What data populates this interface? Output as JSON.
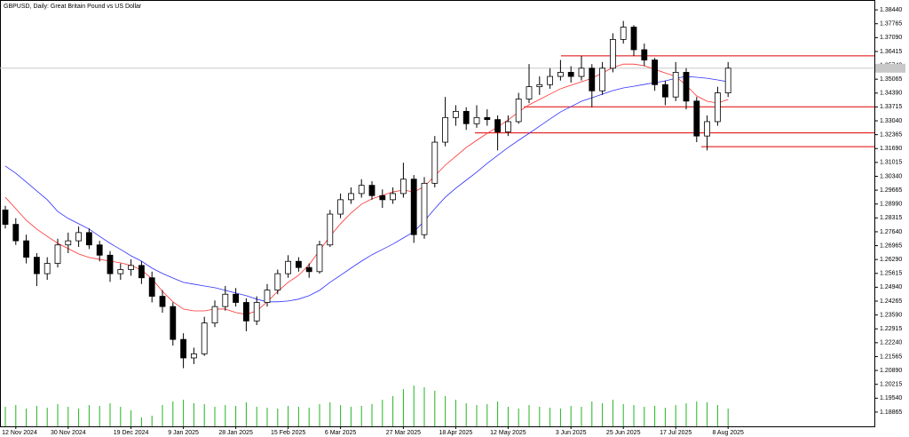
{
  "chart_data": {
    "type": "candlestick",
    "title": "GBPUSD, Daily:  Great Britain Pound vs US Dollar",
    "categories": [
      null,
      "12 Nov 2024",
      null,
      null,
      null,
      null,
      "30 Nov 2024",
      null,
      null,
      null,
      null,
      null,
      "19 Dec 2024",
      null,
      null,
      null,
      null,
      "9 Jan 2025",
      null,
      null,
      null,
      null,
      "28 Jan 2025",
      null,
      null,
      null,
      null,
      "15 Feb 2025",
      null,
      null,
      null,
      null,
      "6 Mar 2025",
      null,
      null,
      null,
      null,
      null,
      "27 Mar 2025",
      null,
      null,
      null,
      null,
      "18 Apr 2025",
      null,
      null,
      null,
      null,
      "12 May 2025",
      null,
      null,
      null,
      null,
      null,
      "3 Jun 2025",
      null,
      null,
      null,
      null,
      "25 Jun 2025",
      null,
      null,
      null,
      null,
      "17 Jul 2025",
      null,
      null,
      null,
      null,
      "8 Aug 2025"
    ],
    "open": [
      1.287,
      1.28,
      1.272,
      1.264,
      1.256,
      1.261,
      1.27,
      1.272,
      1.276,
      1.27,
      1.265,
      1.256,
      1.258,
      1.26,
      1.254,
      1.245,
      1.24,
      1.224,
      1.215,
      1.217,
      1.232,
      1.24,
      1.246,
      1.242,
      1.233,
      1.242,
      1.248,
      1.256,
      1.262,
      1.259,
      1.257,
      1.27,
      1.285,
      1.292,
      1.295,
      1.299,
      1.294,
      1.292,
      1.295,
      1.302,
      1.275,
      1.3,
      1.32,
      1.332,
      1.335,
      1.329,
      1.332,
      1.331,
      1.325,
      1.33,
      1.341,
      1.347,
      1.348,
      1.352,
      1.354,
      1.352,
      1.356,
      1.345,
      1.356,
      1.37,
      1.376,
      1.365,
      1.36,
      1.348,
      1.342,
      1.354,
      1.34,
      1.323,
      1.33,
      1.344
    ],
    "high": [
      1.289,
      1.283,
      1.275,
      1.266,
      1.264,
      1.273,
      1.276,
      1.279,
      1.278,
      1.272,
      1.267,
      1.261,
      1.263,
      1.262,
      1.257,
      1.248,
      1.242,
      1.227,
      1.22,
      1.235,
      1.243,
      1.25,
      1.249,
      1.244,
      1.245,
      1.251,
      1.258,
      1.265,
      1.264,
      1.261,
      1.272,
      1.287,
      1.295,
      1.298,
      1.302,
      1.301,
      1.297,
      1.298,
      1.31,
      1.304,
      1.303,
      1.323,
      1.342,
      1.338,
      1.337,
      1.338,
      1.336,
      1.333,
      1.333,
      1.344,
      1.358,
      1.352,
      1.356,
      1.36,
      1.357,
      1.362,
      1.358,
      1.359,
      1.373,
      1.379,
      1.377,
      1.368,
      1.361,
      1.35,
      1.359,
      1.356,
      1.342,
      1.333,
      1.347,
      1.359
    ],
    "low": [
      1.278,
      1.27,
      1.261,
      1.25,
      1.253,
      1.259,
      1.266,
      1.269,
      1.268,
      1.262,
      1.252,
      1.253,
      1.255,
      1.251,
      1.242,
      1.237,
      1.221,
      1.21,
      1.212,
      1.216,
      1.23,
      1.238,
      1.24,
      1.228,
      1.231,
      1.24,
      1.246,
      1.254,
      1.257,
      1.254,
      1.256,
      1.269,
      1.283,
      1.29,
      1.293,
      1.292,
      1.288,
      1.29,
      1.293,
      1.271,
      1.273,
      1.298,
      1.318,
      1.328,
      1.326,
      1.327,
      1.328,
      1.316,
      1.323,
      1.329,
      1.339,
      1.343,
      1.346,
      1.35,
      1.349,
      1.35,
      1.337,
      1.343,
      1.354,
      1.368,
      1.362,
      1.357,
      1.345,
      1.338,
      1.34,
      1.336,
      1.32,
      1.316,
      1.328,
      1.342
    ],
    "close": [
      1.28,
      1.272,
      1.264,
      1.256,
      1.261,
      1.27,
      1.272,
      1.276,
      1.27,
      1.265,
      1.256,
      1.258,
      1.26,
      1.254,
      1.245,
      1.24,
      1.224,
      1.215,
      1.217,
      1.232,
      1.24,
      1.246,
      1.242,
      1.233,
      1.242,
      1.248,
      1.256,
      1.262,
      1.259,
      1.257,
      1.27,
      1.285,
      1.292,
      1.295,
      1.299,
      1.294,
      1.292,
      1.295,
      1.302,
      1.275,
      1.3,
      1.32,
      1.332,
      1.335,
      1.329,
      1.332,
      1.331,
      1.325,
      1.33,
      1.341,
      1.347,
      1.348,
      1.352,
      1.354,
      1.352,
      1.356,
      1.345,
      1.356,
      1.37,
      1.376,
      1.365,
      1.36,
      1.348,
      1.342,
      1.354,
      1.34,
      1.323,
      1.33,
      1.344,
      1.356
    ],
    "ylim": [
      1.1817,
      1.3892
    ],
    "yticks": [
      {
        "value": 1.3844,
        "label": "1.38440"
      },
      1.37765,
      {
        "value": 1.3709,
        "label": "1.37090"
      },
      1.36415,
      {
        "value": 1.3574,
        "label": "1.35740"
      },
      1.35065,
      {
        "value": 1.3439,
        "label": "1.34390"
      },
      1.33715,
      {
        "value": 1.3304,
        "label": "1.33040"
      },
      1.32365,
      {
        "value": 1.3169,
        "label": "1.31690"
      },
      1.31015,
      {
        "value": 1.3034,
        "label": "1.30340"
      },
      1.29665,
      {
        "value": 1.2899,
        "label": "1.28990"
      },
      1.28315,
      {
        "value": 1.2764,
        "label": "1.27640"
      },
      1.26965,
      {
        "value": 1.2629,
        "label": "1.26290"
      },
      1.25615,
      {
        "value": 1.2494,
        "label": "1.24940"
      },
      1.24265,
      {
        "value": 1.2359,
        "label": "1.23590"
      },
      1.22915,
      {
        "value": 1.2224,
        "label": "1.22240"
      },
      1.21565,
      {
        "value": 1.2089,
        "label": "1.20890"
      },
      1.20215,
      {
        "value": 1.1954,
        "label": "1.19540"
      },
      1.18865
    ],
    "moving_averages": [
      {
        "color": "#ff3030",
        "values": [
          1.2932,
          1.2876,
          1.282,
          1.2777,
          1.2742,
          1.2708,
          1.2682,
          1.2656,
          1.2639,
          1.263,
          1.2621,
          1.2613,
          1.26,
          1.2578,
          1.2535,
          1.2474,
          1.2423,
          1.2388,
          1.2379,
          1.2379,
          1.2388,
          1.2388,
          1.2371,
          1.2362,
          1.2379,
          1.2423,
          1.2474,
          1.2518,
          1.2552,
          1.2604,
          1.2673,
          1.2742,
          1.2803,
          1.2855,
          1.2898,
          1.2924,
          1.2941,
          1.2958,
          1.2967,
          1.2958,
          1.2984,
          1.3036,
          1.3088,
          1.3131,
          1.3174,
          1.3209,
          1.3243,
          1.3274,
          1.3308,
          1.3347,
          1.3382,
          1.3408,
          1.3434,
          1.346,
          1.3477,
          1.3494,
          1.3511,
          1.3537,
          1.3563,
          1.358,
          1.358,
          1.3572,
          1.3554,
          1.3537,
          1.352,
          1.3477,
          1.3425,
          1.3399,
          1.339,
          1.3408
        ]
      },
      {
        "color": "#3030ff",
        "values": [
          1.3084,
          1.3049,
          1.3006,
          1.2963,
          1.292,
          1.2863,
          1.2829,
          1.2803,
          1.2777,
          1.2742,
          1.2708,
          1.2678,
          1.2647,
          1.2621,
          1.2587,
          1.2561,
          1.2539,
          1.2518,
          1.2509,
          1.25,
          1.2492,
          1.2479,
          1.2466,
          1.2453,
          1.2436,
          1.2423,
          1.2423,
          1.2427,
          1.2436,
          1.2453,
          1.2479,
          1.2518,
          1.2552,
          1.2587,
          1.2621,
          1.2652,
          1.2678,
          1.2704,
          1.2734,
          1.2764,
          1.2816,
          1.2876,
          1.2932,
          1.2976,
          1.3015,
          1.3054,
          1.3097,
          1.3136,
          1.3174,
          1.3209,
          1.3243,
          1.3278,
          1.3313,
          1.3347,
          1.3373,
          1.3399,
          1.3416,
          1.3434,
          1.3451,
          1.3464,
          1.3472,
          1.3481,
          1.349,
          1.3498,
          1.3511,
          1.352,
          1.3516,
          1.3511,
          1.3503,
          1.3494
        ]
      }
    ],
    "levels": {
      "color": "#e00000",
      "values": [
        1.362,
        1.3372,
        1.3245,
        1.3178
      ]
    },
    "volume": {
      "color": "#22b422",
      "ylim": [
        0,
        100
      ],
      "values": [
        22,
        24,
        20,
        23,
        21,
        25,
        22,
        20,
        24,
        23,
        26,
        22,
        18,
        10,
        12,
        24,
        28,
        30,
        26,
        25,
        22,
        24,
        23,
        27,
        22,
        21,
        20,
        23,
        22,
        21,
        25,
        27,
        24,
        22,
        23,
        25,
        30,
        34,
        42,
        46,
        44,
        40,
        34,
        30,
        26,
        24,
        25,
        28,
        22,
        20,
        24,
        22,
        21,
        20,
        23,
        22,
        28,
        26,
        30,
        25,
        24,
        22,
        23,
        21,
        24,
        26,
        28,
        27,
        24,
        20
      ]
    }
  }
}
